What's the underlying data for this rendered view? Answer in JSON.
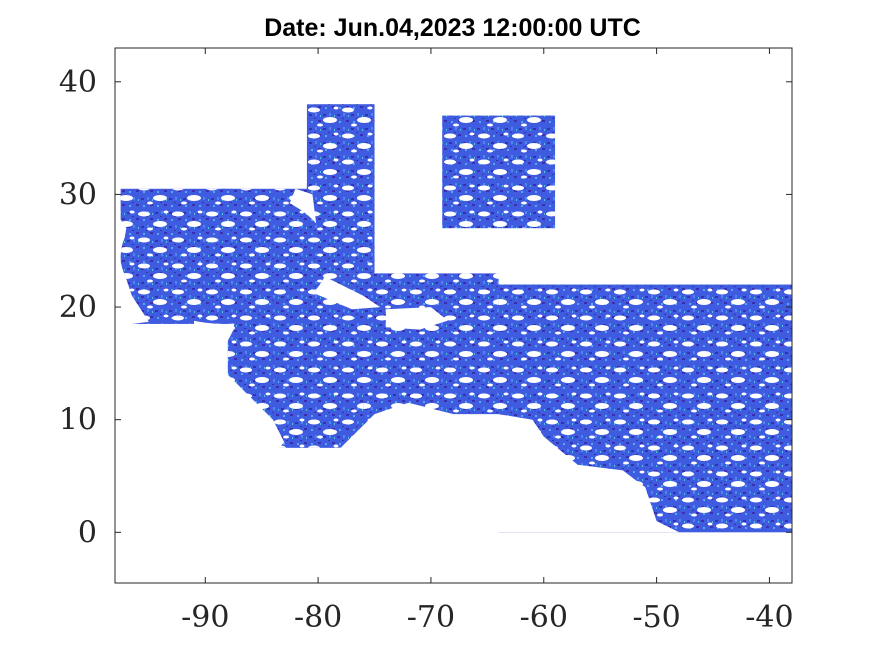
{
  "title": "Date: Jun.04,2023 12:00:00 UTC",
  "colors": {
    "background": "#ffffff",
    "axis": "#262626",
    "data_dark": "#3a2fb0",
    "data_mid": "#3f5fe0",
    "data_light": "#4f8ff0",
    "data_cyan": "#40c8c0"
  },
  "axes": {
    "xlim": [
      -98,
      -38
    ],
    "ylim": [
      -4.5,
      43
    ],
    "xticks": [
      {
        "value": -90,
        "label": "-90"
      },
      {
        "value": -80,
        "label": "-80"
      },
      {
        "value": -70,
        "label": "-70"
      },
      {
        "value": -60,
        "label": "-60"
      },
      {
        "value": -50,
        "label": "-50"
      },
      {
        "value": -40,
        "label": "-40"
      }
    ],
    "yticks": [
      {
        "value": 0,
        "label": "0"
      },
      {
        "value": 10,
        "label": "10"
      },
      {
        "value": 20,
        "label": "20"
      },
      {
        "value": 30,
        "label": "30"
      },
      {
        "value": 40,
        "label": "40"
      }
    ]
  },
  "regions": [
    {
      "id": "gulf-of-mexico",
      "lon": [
        -97.5,
        -79
      ],
      "lat": [
        18.5,
        30.5
      ]
    },
    {
      "id": "florida-atlantic-strip",
      "lon": [
        -81,
        -75
      ],
      "lat": [
        23,
        38
      ]
    },
    {
      "id": "atlantic-box",
      "lon": [
        -69,
        -59
      ],
      "lat": [
        27,
        37
      ]
    },
    {
      "id": "caribbean",
      "lon": [
        -88,
        -58
      ],
      "lat": [
        8,
        23
      ]
    },
    {
      "id": "western-caribbean-strip",
      "lon": [
        -84,
        -76
      ],
      "lat": [
        7.5,
        12
      ]
    },
    {
      "id": "tropical-atlantic",
      "lon": [
        -64,
        -38
      ],
      "lat": [
        0,
        22
      ]
    }
  ]
}
